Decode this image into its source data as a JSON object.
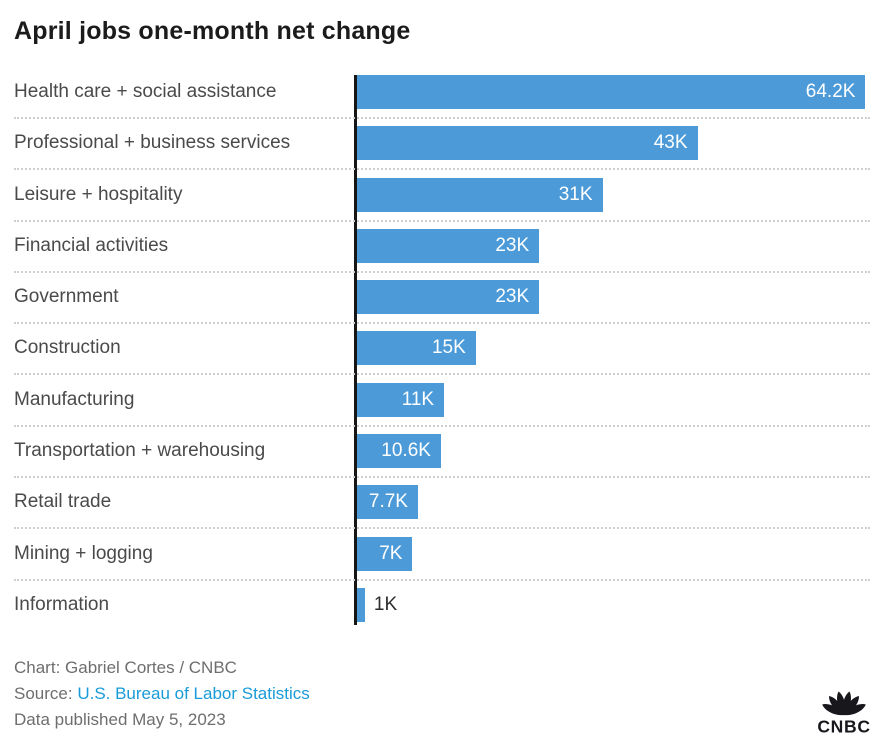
{
  "title": "April jobs one-month net change",
  "chart_data": {
    "type": "bar",
    "orientation": "horizontal",
    "title": "April jobs one-month net change",
    "categories": [
      "Health care + social assistance",
      "Professional + business services",
      "Leisure + hospitality",
      "Financial activities",
      "Government",
      "Construction",
      "Manufacturing",
      "Transportation + warehousing",
      "Retail trade",
      "Mining + logging",
      "Information"
    ],
    "values": [
      64.2,
      43,
      31,
      23,
      23,
      15,
      11,
      10.6,
      7.7,
      7,
      1
    ],
    "value_labels": [
      "64.2K",
      "43K",
      "31K",
      "23K",
      "23K",
      "15K",
      "11K",
      "10.6K",
      "7.7K",
      "7K",
      "1K"
    ],
    "unit": "K",
    "xlabel": "",
    "ylabel": "",
    "xlim": [
      0,
      64.9
    ],
    "grid": false,
    "legend": "none",
    "bar_color": "#4C9BD8",
    "value_label_inside_color": "#FFFFFF",
    "value_label_outside_color": "#2E2E30"
  },
  "footer": {
    "credit": "Chart: Gabriel Cortes / CNBC",
    "source_label": "Source: ",
    "source_link": "U.S. Bureau of Labor Statistics",
    "published": "Data published May 5, 2023",
    "link_color": "#189BD8"
  },
  "logo": {
    "text": "CNBC"
  }
}
